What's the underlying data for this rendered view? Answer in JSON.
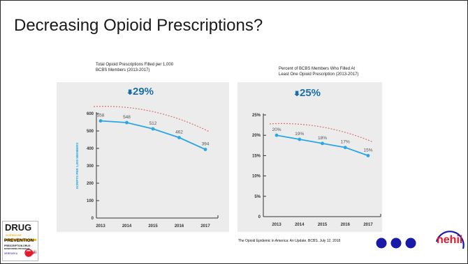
{
  "slide": {
    "title": "Decreasing Opioid Prescriptions?",
    "source": "The Opioid Epidemic in America: An Update. BCBS. July 12, 2018"
  },
  "logos": {
    "drug": [
      "DRUG",
      "OVERDOSE",
      "PREVENTION",
      "PRESCRIPTION DRUG",
      "MONITORING PROGRAM",
      "NEBRASKA",
      "nehii"
    ],
    "brand": "nehii"
  },
  "colors": {
    "line": "#2aa6e6",
    "trend": "#e07070",
    "accent_navy": "#1a1aa8",
    "accent_red": "#e01c2c",
    "panel": "#ececec"
  },
  "chart_data": [
    {
      "type": "line",
      "caption": [
        "Total Opioid Prescriptions Filled per 1,000",
        "BCBS Members (2013-2017)"
      ],
      "title": "Total Opioid Prescriptions Filled per 1,000 BCBS Members (2013-2017)",
      "callout": "29%",
      "callout_icon": "down-arrow-icon",
      "x": [
        "2013",
        "2014",
        "2015",
        "2016",
        "2017"
      ],
      "series": [
        {
          "values": [
            558,
            548,
            512,
            462,
            394
          ],
          "labels": [
            "558",
            "548",
            "512",
            "462",
            "394"
          ]
        }
      ],
      "ylabel": "SCRIPTS PER 1,000 MEMBERS",
      "ylim": [
        0,
        600
      ],
      "yticks": [
        "0",
        "100",
        "200",
        "300",
        "400",
        "500",
        "600"
      ],
      "grid": false
    },
    {
      "type": "line",
      "caption": [
        "Percent of BCBS Members Who Filled At",
        "Least One Opioid Prescription (2013-2017)"
      ],
      "title": "Percent of BCBS Members Who Filled At Least One Opioid Prescription (2013-2017)",
      "callout": "25%",
      "callout_icon": "down-arrow-icon",
      "x": [
        "2013",
        "2014",
        "2015",
        "2016",
        "2017"
      ],
      "series": [
        {
          "values": [
            20,
            19,
            18,
            17,
            15
          ],
          "labels": [
            "20%",
            "19%",
            "18%",
            "17%",
            "15%"
          ]
        }
      ],
      "ylabel": "",
      "ylim": [
        0,
        25
      ],
      "yticks": [
        "0",
        "5%",
        "10%",
        "15%",
        "20%",
        "25%"
      ],
      "grid": false
    }
  ]
}
